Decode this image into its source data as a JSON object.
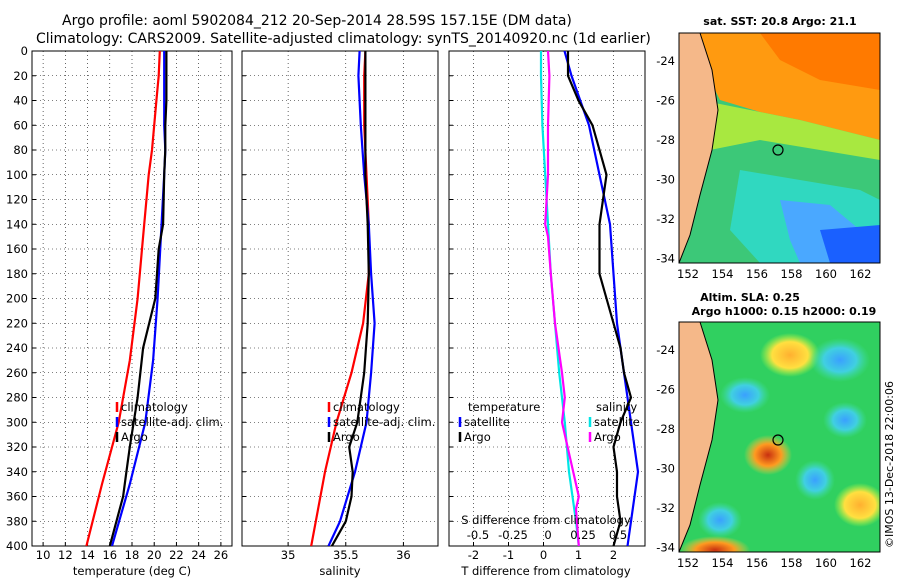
{
  "title_line1": "Argo profile: aoml 5902084_212 20-Sep-2014 28.59S 157.15E (DM data)",
  "title_line2": "Climatology: CARS2009. Satellite-adjusted climatology: synTS_20140920.nc (1d earlier)",
  "colors": {
    "climatology": "#ff0000",
    "satellite": "#0000ff",
    "argo": "#000000",
    "temp_diff": "#ff00ff",
    "salt_diff": "#00e5e5"
  },
  "depth_ticks": [
    "0",
    "20",
    "40",
    "60",
    "80",
    "100",
    "120",
    "140",
    "160",
    "180",
    "200",
    "220",
    "240",
    "260",
    "280",
    "300",
    "320",
    "340",
    "360",
    "380",
    "400"
  ],
  "chart_data": [
    {
      "type": "line",
      "name": "temperature",
      "xlabel": "temperature (deg C)",
      "ylabel": "depth",
      "xlim": [
        9,
        27
      ],
      "ylim": [
        400,
        0
      ],
      "xticks": [
        10,
        12,
        14,
        16,
        18,
        20,
        22,
        24,
        26
      ],
      "xtick_labels": [
        "10",
        "12",
        "14",
        "16",
        "18",
        "20",
        "22",
        "24",
        "26"
      ],
      "legend": [
        "climatology",
        "satellite-adj. clim.",
        "Argo"
      ],
      "legend_position": "lower-right",
      "series": [
        {
          "name": "climatology",
          "color": "#ff0000",
          "depth": [
            0,
            20,
            40,
            60,
            80,
            100,
            150,
            200,
            250,
            300,
            350,
            400
          ],
          "values": [
            20.5,
            20.4,
            20.2,
            20.0,
            19.8,
            19.5,
            19.0,
            18.5,
            17.8,
            16.8,
            15.3,
            13.9
          ]
        },
        {
          "name": "satellite-adj. clim.",
          "color": "#0000ff",
          "depth": [
            0,
            20,
            40,
            60,
            80,
            100,
            150,
            200,
            250,
            300,
            350,
            400
          ],
          "values": [
            20.9,
            20.9,
            20.9,
            20.9,
            21.0,
            20.9,
            20.6,
            20.3,
            19.9,
            19.2,
            17.8,
            16.2
          ]
        },
        {
          "name": "Argo",
          "color": "#000000",
          "depth": [
            0,
            20,
            40,
            60,
            80,
            100,
            140,
            160,
            200,
            240,
            280,
            320,
            340,
            360,
            400
          ],
          "values": [
            21.1,
            21.1,
            21.1,
            21.0,
            21.0,
            20.9,
            20.8,
            20.4,
            20.1,
            19.0,
            18.5,
            17.8,
            17.5,
            17.2,
            16.0
          ]
        }
      ]
    },
    {
      "type": "line",
      "name": "salinity",
      "xlabel": "salinity",
      "ylabel": "depth",
      "xlim": [
        34.6,
        36.3
      ],
      "ylim": [
        400,
        0
      ],
      "xticks": [
        35,
        35.5,
        36
      ],
      "xtick_labels": [
        "35",
        "35.5",
        "36"
      ],
      "legend": [
        "climatology",
        "satellite-adj. clim.",
        "Argo"
      ],
      "legend_position": "lower-right",
      "series": [
        {
          "name": "climatology",
          "color": "#ff0000",
          "depth": [
            0,
            20,
            60,
            100,
            140,
            180,
            220,
            260,
            300,
            340,
            380,
            400
          ],
          "values": [
            35.67,
            35.66,
            35.66,
            35.68,
            35.7,
            35.7,
            35.65,
            35.55,
            35.42,
            35.32,
            35.24,
            35.2
          ]
        },
        {
          "name": "satellite-adj. clim.",
          "color": "#0000ff",
          "depth": [
            0,
            20,
            60,
            100,
            140,
            180,
            220,
            260,
            300,
            340,
            380,
            400
          ],
          "values": [
            35.62,
            35.61,
            35.63,
            35.66,
            35.7,
            35.72,
            35.75,
            35.72,
            35.68,
            35.58,
            35.45,
            35.35
          ]
        },
        {
          "name": "Argo",
          "color": "#000000",
          "depth": [
            0,
            20,
            60,
            100,
            140,
            180,
            220,
            260,
            300,
            320,
            340,
            360,
            380,
            400
          ],
          "values": [
            35.67,
            35.67,
            35.67,
            35.67,
            35.69,
            35.7,
            35.69,
            35.66,
            35.6,
            35.53,
            35.56,
            35.55,
            35.5,
            35.38
          ]
        }
      ]
    },
    {
      "type": "line",
      "name": "difference",
      "xlabel": "T difference from climatology",
      "xlabel_top": "S difference from climatology",
      "ylabel": "depth",
      "xlim": [
        -2.7,
        2.9
      ],
      "ylim": [
        400,
        0
      ],
      "xticks": [
        -2,
        -1,
        0,
        1,
        2
      ],
      "xtick_labels": [
        "-2",
        "-1",
        "0",
        "1",
        "2"
      ],
      "sticks_pos": [
        -0.5,
        -0.25,
        0,
        0.25,
        0.5
      ],
      "sticks_labels": [
        "-0.5",
        "-0.25",
        "0",
        "0.25",
        "0.5"
      ],
      "legend_left": [
        "temperature",
        "satellite",
        "Argo"
      ],
      "legend_right": [
        "salinity",
        "satellite",
        "Argo"
      ],
      "series": [
        {
          "name": "temperature satellite",
          "color": "#0000ff",
          "depth": [
            0,
            20,
            60,
            100,
            140,
            180,
            220,
            260,
            300,
            340,
            380,
            400
          ],
          "values": [
            0.6,
            0.8,
            1.3,
            1.6,
            1.9,
            2.0,
            2.1,
            2.3,
            2.5,
            2.7,
            2.5,
            2.4
          ]
        },
        {
          "name": "temperature Argo",
          "color": "#000000",
          "depth": [
            0,
            20,
            40,
            60,
            80,
            100,
            120,
            140,
            160,
            180,
            200,
            240,
            260,
            280,
            300,
            320,
            340,
            360,
            380,
            400
          ],
          "values": [
            0.7,
            0.7,
            1.0,
            1.4,
            1.6,
            1.8,
            1.7,
            1.6,
            1.6,
            1.6,
            1.8,
            2.2,
            2.3,
            2.5,
            2.2,
            2.0,
            2.1,
            2.1,
            2.2,
            2.0
          ]
        },
        {
          "name": "salinity satellite",
          "color": "#00e5e5",
          "depth": [
            0,
            20,
            60,
            100,
            140,
            180,
            220,
            260,
            300,
            340,
            380,
            400
          ],
          "values": [
            -0.05,
            -0.05,
            -0.04,
            -0.02,
            0.0,
            0.02,
            0.05,
            0.08,
            0.12,
            0.15,
            0.2,
            0.22
          ]
        },
        {
          "name": "salinity Argo",
          "color": "#ff00ff",
          "depth": [
            0,
            20,
            60,
            100,
            140,
            150,
            180,
            220,
            260,
            280,
            300,
            320,
            340,
            360,
            370,
            400
          ],
          "values": [
            0.0,
            0.01,
            0.0,
            0.0,
            -0.02,
            0.0,
            0.02,
            0.05,
            0.1,
            0.12,
            0.1,
            0.14,
            0.18,
            0.22,
            0.2,
            0.22
          ]
        }
      ]
    }
  ],
  "map_sst": {
    "title": "sat. SST: 20.8 Argo: 21.1",
    "lon_labels": [
      "152",
      "154",
      "156",
      "158",
      "160",
      "162"
    ],
    "lat_labels": [
      "-24",
      "-26",
      "-28",
      "-30",
      "-32",
      "-34"
    ]
  },
  "map_sla": {
    "title1": "Altim. SLA: 0.25",
    "title2": "Argo h1000: 0.15 h2000: 0.19",
    "lon_labels": [
      "152",
      "154",
      "156",
      "158",
      "160",
      "162"
    ],
    "lat_labels": [
      "-24",
      "-26",
      "-28",
      "-30",
      "-32",
      "-34"
    ]
  },
  "watermark": "©IMOS 13-Dec-2018 22:00:06"
}
